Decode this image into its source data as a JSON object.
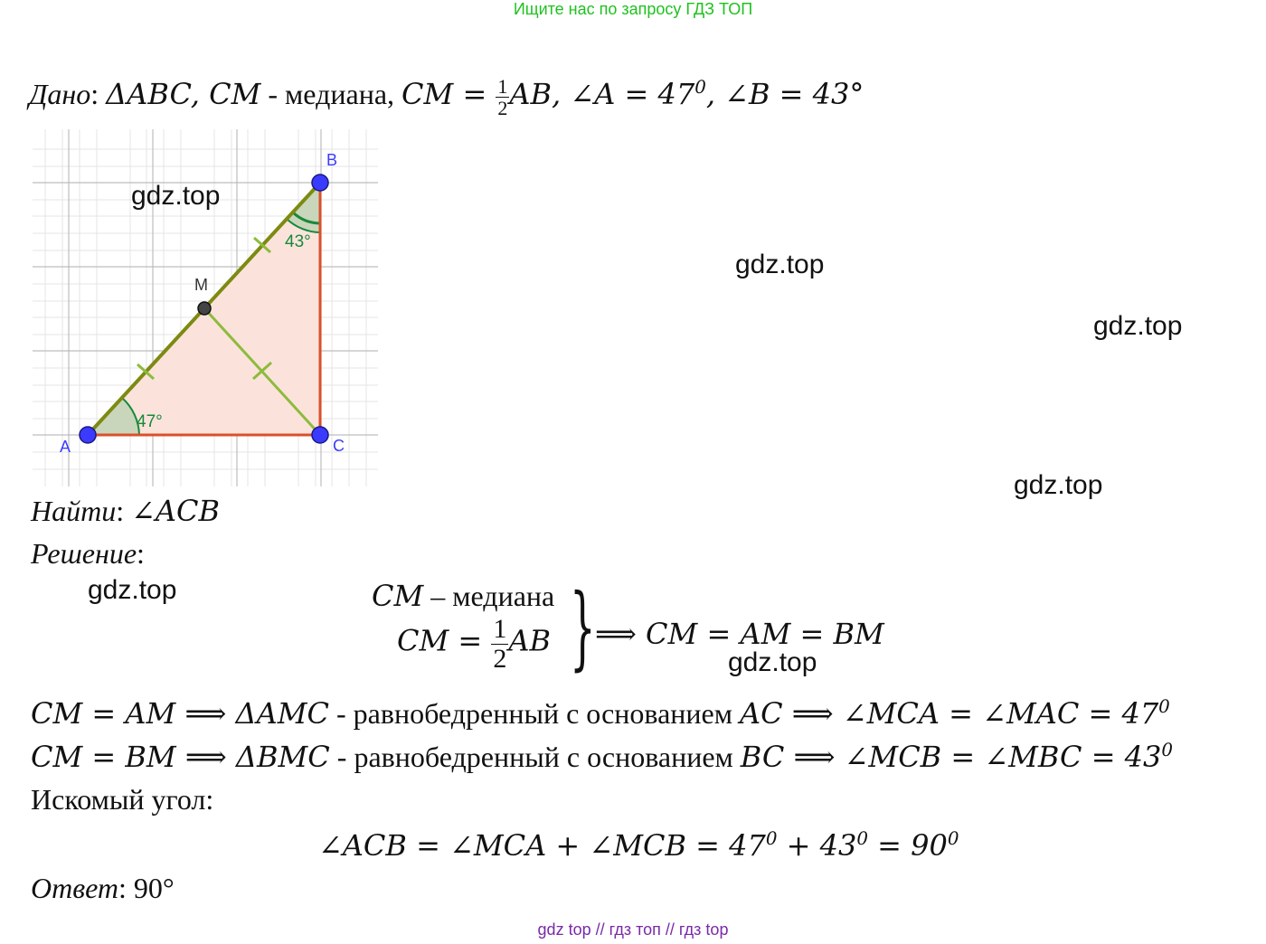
{
  "banner": "Ищите нас по запросу ГДЗ ТОП",
  "watermark": "gdz.top",
  "given": {
    "label": "Дано",
    "tri": "ΔABC, CM",
    "median_word": " - медиана, ",
    "cm_eq": "CM = ",
    "frac_num": "1",
    "frac_den": "2",
    "ab_rest": "AB, ∠A = 47",
    "zero": "0",
    "angle_b": ", ∠B =  43°"
  },
  "figure": {
    "label_a": "A",
    "label_b": "B",
    "label_c": "C",
    "label_m": "M",
    "angle_a": "47°",
    "angle_b": "43°"
  },
  "find": {
    "label": "Найти",
    "value": "∠ACB"
  },
  "solution": {
    "label": "Решение",
    "sys_line1_var": "CM",
    "sys_line1_text": " –  медиана",
    "sys_line2_eq": "CM = ",
    "sys_frac_num": "1",
    "sys_frac_den": "2",
    "sys_line2_ab": "AB",
    "sys_result": "⟹ CM = AM = BM",
    "line1_math": "CM = AM ⟹ ΔAMC",
    "line1_text": " - равнобедренный с основанием ",
    "line1_math2": "AC ⟹ ∠MCA = ∠MAC = 47",
    "line2_math": "CM = BM ⟹ ΔBMC",
    "line2_text": " - равнобедренный с основанием ",
    "line2_math2": "BC ⟹ ∠MCB = ∠MBC = 43",
    "sought": "Искомый угол:",
    "final_a": "∠ACB = ∠MCA + ∠MCB = 47",
    "final_b": " + 43",
    "final_c": " = 90"
  },
  "answer": {
    "label": "Ответ",
    "value": "90°"
  },
  "footer": "gdz top  //  гдз топ  //  гдз top"
}
